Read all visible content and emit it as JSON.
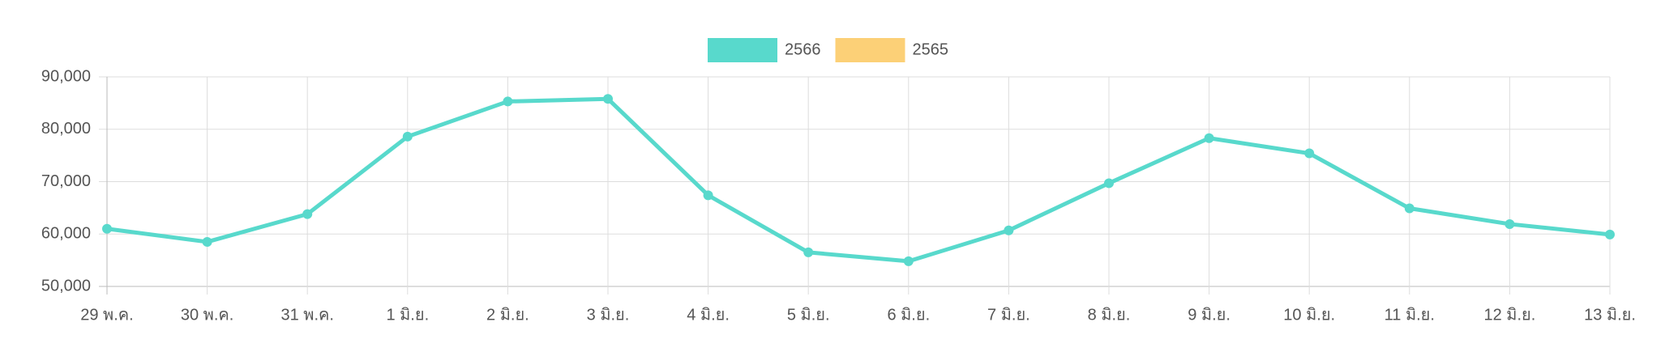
{
  "chart_data": {
    "type": "line",
    "categories": [
      "29 พ.ค.",
      "30 พ.ค.",
      "31 พ.ค.",
      "1 มิ.ย.",
      "2 มิ.ย.",
      "3 มิ.ย.",
      "4 มิ.ย.",
      "5 มิ.ย.",
      "6 มิ.ย.",
      "7 มิ.ย.",
      "8 มิ.ย.",
      "9 มิ.ย.",
      "10 มิ.ย.",
      "11 มิ.ย.",
      "12 มิ.ย.",
      "13 มิ.ย."
    ],
    "series": [
      {
        "name": "2566",
        "color": "#58d9cc",
        "values": [
          61000,
          58500,
          63800,
          78600,
          85300,
          85800,
          67400,
          56500,
          54800,
          60700,
          69700,
          78300,
          75400,
          64900,
          61900,
          59900
        ]
      },
      {
        "name": "2565",
        "color": "#fcd077",
        "values": [
          null,
          null,
          null,
          null,
          null,
          null,
          null,
          null,
          null,
          null,
          null,
          null,
          null,
          null,
          null,
          null
        ]
      }
    ],
    "ylim": [
      50000,
      90000
    ],
    "yticks": [
      {
        "value": 50000,
        "label": "50,000"
      },
      {
        "value": 60000,
        "label": "60,000"
      },
      {
        "value": 70000,
        "label": "70,000"
      },
      {
        "value": 80000,
        "label": "80,000"
      },
      {
        "value": 90000,
        "label": "90,000"
      }
    ],
    "grid": true,
    "legend": "top"
  }
}
